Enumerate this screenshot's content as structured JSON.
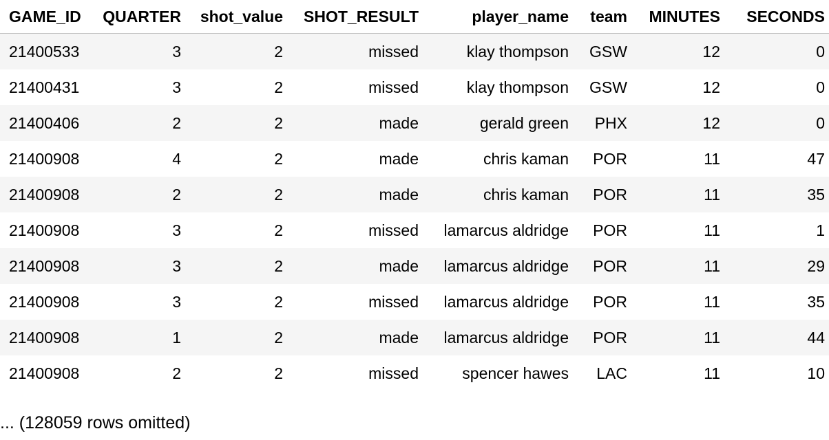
{
  "table": {
    "columns": [
      "GAME_ID",
      "QUARTER",
      "shot_value",
      "SHOT_RESULT",
      "player_name",
      "team",
      "MINUTES",
      "SECONDS"
    ],
    "rows": [
      [
        "21400533",
        "3",
        "2",
        "missed",
        "klay thompson",
        "GSW",
        "12",
        "0"
      ],
      [
        "21400431",
        "3",
        "2",
        "missed",
        "klay thompson",
        "GSW",
        "12",
        "0"
      ],
      [
        "21400406",
        "2",
        "2",
        "made",
        "gerald green",
        "PHX",
        "12",
        "0"
      ],
      [
        "21400908",
        "4",
        "2",
        "made",
        "chris kaman",
        "POR",
        "11",
        "47"
      ],
      [
        "21400908",
        "2",
        "2",
        "made",
        "chris kaman",
        "POR",
        "11",
        "35"
      ],
      [
        "21400908",
        "3",
        "2",
        "missed",
        "lamarcus aldridge",
        "POR",
        "11",
        "1"
      ],
      [
        "21400908",
        "3",
        "2",
        "made",
        "lamarcus aldridge",
        "POR",
        "11",
        "29"
      ],
      [
        "21400908",
        "3",
        "2",
        "missed",
        "lamarcus aldridge",
        "POR",
        "11",
        "35"
      ],
      [
        "21400908",
        "1",
        "2",
        "made",
        "lamarcus aldridge",
        "POR",
        "11",
        "44"
      ],
      [
        "21400908",
        "2",
        "2",
        "missed",
        "spencer hawes",
        "LAC",
        "11",
        "10"
      ]
    ]
  },
  "footer": {
    "omitted_text": "... (128059 rows omitted)"
  }
}
